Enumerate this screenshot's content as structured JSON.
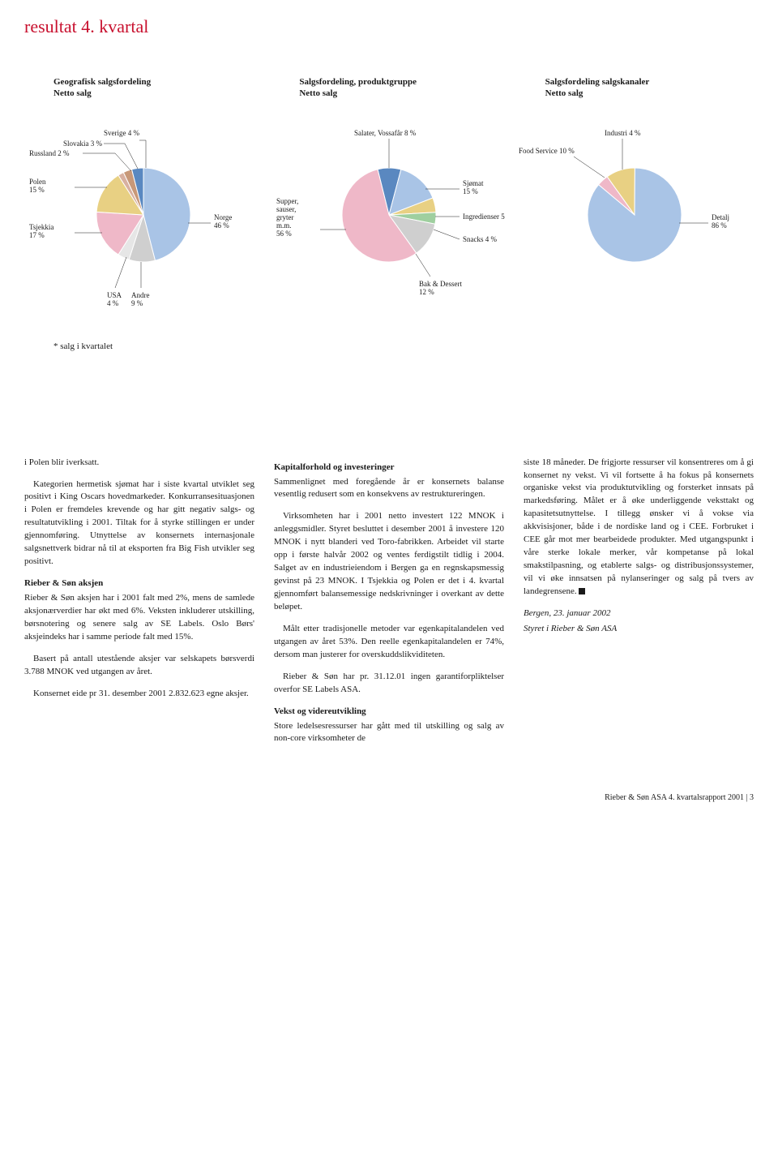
{
  "title": "resultat 4. kvartal",
  "footnote": "* salg i kvartalet",
  "chart1": {
    "title": "Geografisk salgsfordeling\nNetto salg",
    "slices": [
      {
        "label": "Norge",
        "pct": 46,
        "color": "#a9c4e6"
      },
      {
        "label": "Andre",
        "pct": 9,
        "color": "#cfcfcf"
      },
      {
        "label": "USA",
        "pct": 4,
        "color": "#e6e6e6"
      },
      {
        "label": "Tsjekkia",
        "pct": 17,
        "color": "#efb8c8"
      },
      {
        "label": "Polen",
        "pct": 15,
        "color": "#e8d083"
      },
      {
        "label": "Russland",
        "pct": 2,
        "color": "#d8b0a0"
      },
      {
        "label": "Slovakia",
        "pct": 3,
        "color": "#c89878"
      },
      {
        "label": "Sverige",
        "pct": 4,
        "color": "#5a88c0"
      }
    ],
    "label_texts": {
      "sverige": "Sverige 4 %",
      "slovakia": "Slovakia 3 %",
      "russland": "Russland 2 %",
      "polen": "Polen\n15 %",
      "tsjekkia": "Tsjekkia\n17 %",
      "usa": "USA\n4 %",
      "andre": "Andre\n9 %",
      "norge": "Norge\n46 %"
    }
  },
  "chart2": {
    "title": "Salgsfordeling, produktgruppe\nNetto salg",
    "slices": [
      {
        "label": "Salater, Vossafår",
        "pct": 8,
        "color": "#5a88c0"
      },
      {
        "label": "Sjømat",
        "pct": 15,
        "color": "#a9c4e6"
      },
      {
        "label": "Ingredienser",
        "pct": 5,
        "color": "#e8d083"
      },
      {
        "label": "Snacks",
        "pct": 4,
        "color": "#9fcf9f"
      },
      {
        "label": "Bak & Dessert",
        "pct": 12,
        "color": "#cfcfcf"
      },
      {
        "label": "Supper, sauser, gryter m.m.",
        "pct": 56,
        "color": "#efb8c8"
      }
    ],
    "label_texts": {
      "salater": "Salater, Vossafår 8 %",
      "sjomat": "Sjømat\n15 %",
      "ingredienser": "Ingredienser 5 %",
      "snacks": "Snacks 4 %",
      "bakdessert": "Bak & Dessert\n12 %",
      "supper": "Supper,\nsauser,\ngryter\nm.m.\n56 %"
    }
  },
  "chart3": {
    "title": "Salgsfordeling salgskanaler\nNetto salg",
    "slices": [
      {
        "label": "Industri",
        "pct": 4,
        "color": "#efb8c8"
      },
      {
        "label": "Food Service",
        "pct": 10,
        "color": "#e8d083"
      },
      {
        "label": "Detalj",
        "pct": 86,
        "color": "#a9c4e6"
      }
    ],
    "label_texts": {
      "industri": "Industri 4 %",
      "foodservice": "Food Service 10 %",
      "detalj": "Detalj\n86 %"
    }
  },
  "body": {
    "col1": {
      "p1": "i Polen blir iverksatt.",
      "p2": "Kategorien hermetisk sjømat har i siste kvartal utviklet seg positivt i King Oscars hovedmarkeder. Konkurransesituasjonen i Polen er fremdeles krevende og har gitt negativ salgs- og resultatutvikling i 2001. Tiltak for å styrke stillingen er under gjennomføring. Utnyttelse av konsernets internasjonale salgsnettverk bidrar nå til at eksporten fra Big Fish utvikler seg positivt.",
      "h1": "Rieber & Søn aksjen",
      "p3": "Rieber & Søn aksjen har i 2001 falt med 2%, mens de samlede aksjonærverdier har økt med 6%. Veksten inkluderer utskilling, børsnotering og senere salg av SE Labels. Oslo Børs' aksjeindeks har i samme periode falt med 15%.",
      "p4": "Basert på antall utestående aksjer var selskapets børsverdi 3.788 MNOK ved utgangen av året.",
      "p5": "Konsernet eide pr 31. desember 2001 2.832.623 egne aksjer."
    },
    "col2": {
      "h1": "Kapitalforhold og investeringer",
      "p1": "Sammenlignet med foregående år er konsernets balanse vesentlig redusert som en konsekvens av restruktureringen.",
      "p2": "Virksomheten har i 2001 netto investert 122 MNOK i anleggsmidler. Styret besluttet i desember 2001 å investere 120 MNOK i nytt blanderi ved Toro-fabrikken. Arbeidet vil starte opp i første halvår 2002 og ventes ferdigstilt tidlig i 2004. Salget av en industrieiendom i Bergen ga en regnskapsmessig gevinst på 23 MNOK. I Tsjekkia og Polen er det i 4. kvartal gjennomført balansemessige nedskrivninger i overkant av dette beløpet.",
      "p3": "Målt etter tradisjonelle metoder var egenkapitalandelen ved utgangen av året 53%. Den reelle egenkapitalandelen er 74%, dersom man justerer for overskuddslikviditeten.",
      "p4": "Rieber & Søn har pr. 31.12.01 ingen garantiforpliktelser overfor SE Labels ASA.",
      "h2": "Vekst og videreutvikling",
      "p5": "Store ledelsesressurser har gått med til utskilling og salg av non-core virksomheter de"
    },
    "col3": {
      "p1": "siste 18 måneder. De frigjorte ressurser vil konsentreres om å gi konsernet ny vekst. Vi vil fortsette å ha fokus på konsernets organiske vekst via produktutvikling og forsterket innsats på markedsføring. Målet er å øke underliggende veksttakt og kapasitetsutnyttelse. I tillegg ønsker vi å vokse via akkvisisjoner, både i de nordiske land og i CEE. Forbruket i CEE går mot mer bearbeidede produkter. Med utgangspunkt i våre sterke lokale merker, vår kompetanse på lokal smakstilpasning, og etablerte salgs- og distribusjonssystemer, vil vi øke innsatsen på nylanseringer og salg på tvers av landegrensene.",
      "sig1": "Bergen, 23. januar 2002",
      "sig2": "Styret i Rieber & Søn ASA"
    }
  },
  "page_footer": "Rieber & Søn ASA 4. kvartalsrapport 2001 | 3"
}
